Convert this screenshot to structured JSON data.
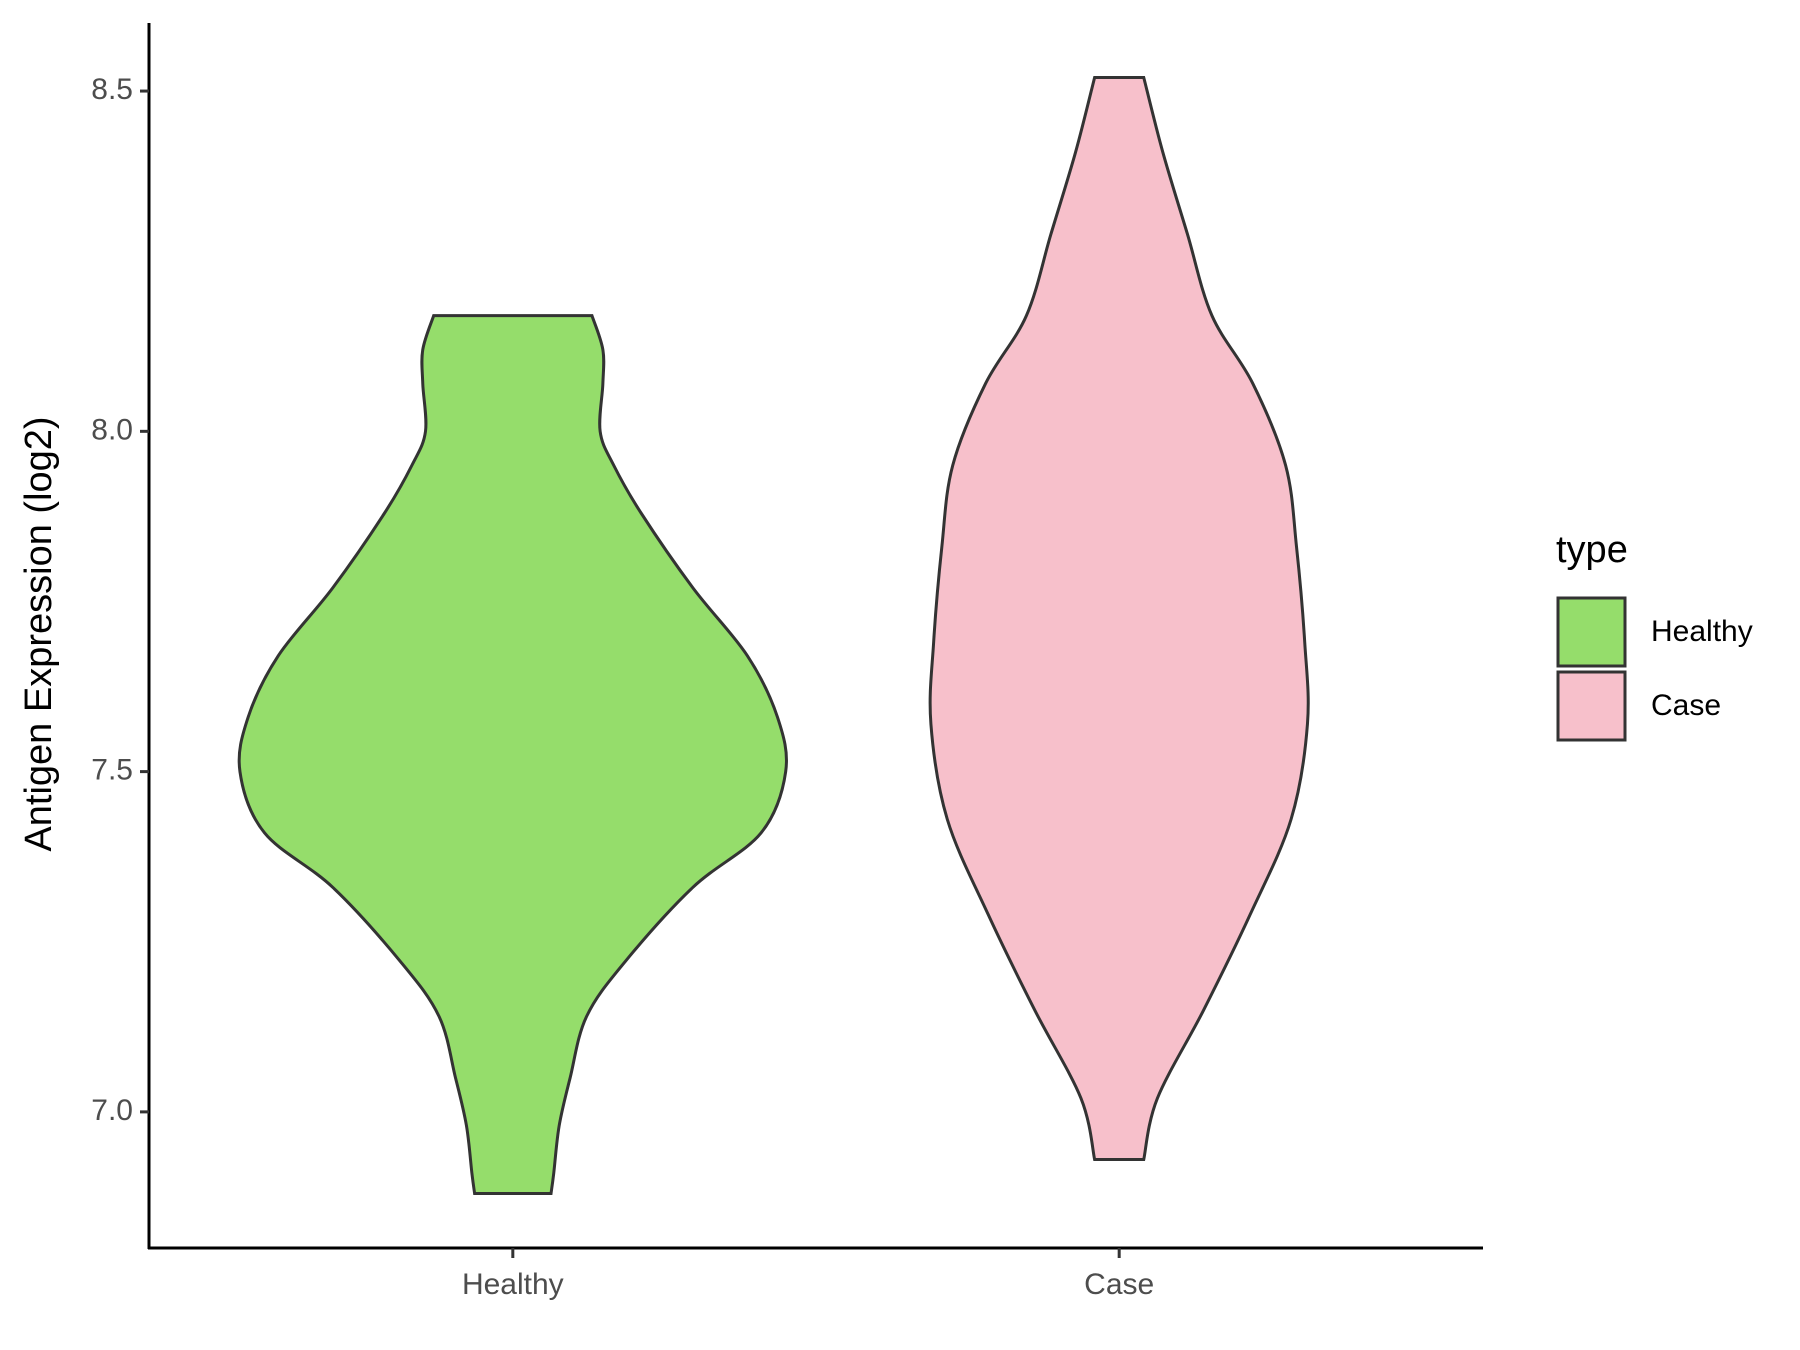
{
  "chart_data": {
    "type": "violin",
    "y_label": "Antigen Expression (log2)",
    "categories": [
      "Healthy",
      "Case"
    ],
    "legend_title": "type",
    "ylim": [
      6.8,
      8.6
    ],
    "yticks": [
      {
        "value": 7,
        "label": "7.0"
      },
      7.5,
      {
        "value": 8,
        "label": "8.0"
      },
      8.5
    ],
    "series": [
      {
        "name": "Healthy",
        "color": "#95dd6b",
        "y": [
          8.17,
          8.12,
          8.07,
          8.0,
          7.95,
          7.88,
          7.77,
          7.67,
          7.58,
          7.5,
          7.41,
          7.33,
          7.22,
          7.14,
          7.05,
          6.98,
          6.91,
          6.88
        ],
        "density": [
          0.29,
          0.33,
          0.33,
          0.32,
          0.37,
          0.47,
          0.66,
          0.86,
          0.97,
          1.0,
          0.91,
          0.66,
          0.41,
          0.27,
          0.21,
          0.17,
          0.15,
          0.14
        ]
      },
      {
        "name": "Case",
        "color": "#f7c0cb",
        "y": [
          8.52,
          8.41,
          8.29,
          8.17,
          8.07,
          7.95,
          7.83,
          7.69,
          7.57,
          7.43,
          7.29,
          7.15,
          7.02,
          6.93
        ],
        "density": [
          0.09,
          0.16,
          0.25,
          0.34,
          0.49,
          0.61,
          0.65,
          0.68,
          0.69,
          0.63,
          0.48,
          0.31,
          0.14,
          0.09
        ]
      }
    ]
  }
}
